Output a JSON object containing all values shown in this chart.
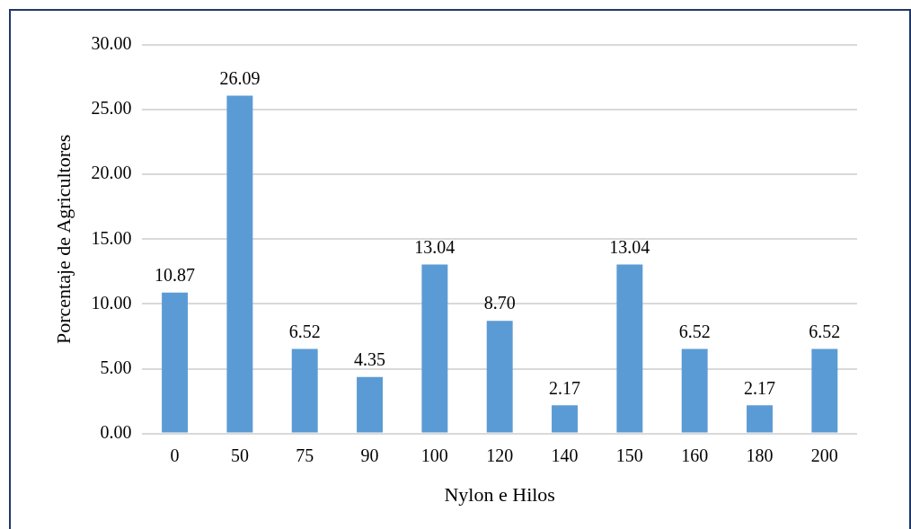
{
  "chart_data": {
    "type": "bar",
    "xlabel": "Nylon e Hilos",
    "ylabel": "Porcentaje de Agricultores",
    "categories": [
      "0",
      "50",
      "75",
      "90",
      "100",
      "120",
      "140",
      "150",
      "160",
      "180",
      "200"
    ],
    "values": [
      10.87,
      26.09,
      6.52,
      4.35,
      13.04,
      8.7,
      2.17,
      13.04,
      6.52,
      2.17,
      6.52
    ],
    "value_labels": [
      "10.87",
      "26.09",
      "6.52",
      "4.35",
      "13.04",
      "8.70",
      "2.17",
      "13.04",
      "6.52",
      "2.17",
      "6.52"
    ],
    "color": "#5b9bd5",
    "ylim": [
      0,
      30
    ],
    "yticks": [
      {
        "value": 0,
        "label": "0.00"
      },
      {
        "value": 5,
        "label": "5.00"
      },
      {
        "value": 10,
        "label": "10.00"
      },
      {
        "value": 15,
        "label": "15.00"
      },
      {
        "value": 20,
        "label": "20.00"
      },
      {
        "value": 25,
        "label": "25.00"
      },
      {
        "value": 30,
        "label": "30.00"
      }
    ],
    "grid": "y",
    "legend": false
  }
}
